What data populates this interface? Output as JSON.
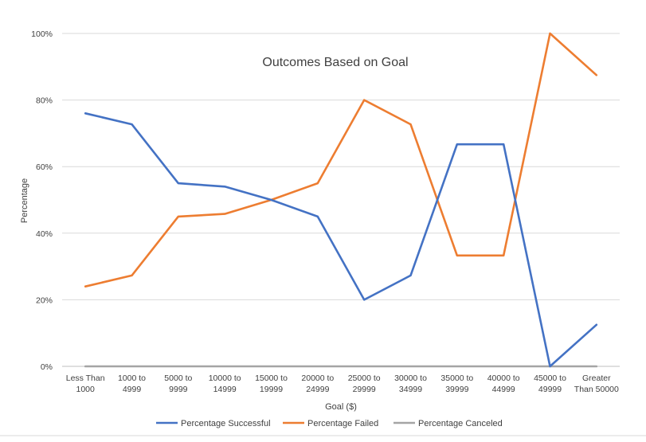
{
  "chart_data": {
    "type": "line",
    "title": "Outcomes Based on Goal",
    "xlabel": "Goal ($)",
    "ylabel": "Percentage",
    "ylim": [
      0,
      100
    ],
    "y_tick_values": [
      0,
      20,
      40,
      60,
      80,
      100
    ],
    "y_tick_labels": [
      "0%",
      "20%",
      "40%",
      "60%",
      "80%",
      "100%"
    ],
    "grid": true,
    "legend_position": "bottom",
    "categories": [
      [
        "Less Than",
        "1000"
      ],
      [
        "1000 to",
        "4999"
      ],
      [
        "5000 to",
        "9999"
      ],
      [
        "10000 to",
        "14999"
      ],
      [
        "15000 to",
        "19999"
      ],
      [
        "20000 to",
        "24999"
      ],
      [
        "25000 to",
        "29999"
      ],
      [
        "30000 to",
        "34999"
      ],
      [
        "35000 to",
        "39999"
      ],
      [
        "40000 to",
        "44999"
      ],
      [
        "45000 to",
        "49999"
      ],
      [
        "Greater",
        "Than 50000"
      ]
    ],
    "series": [
      {
        "name": "Percentage Successful",
        "color": "#4472C4",
        "values": [
          76,
          72.7,
          55,
          54,
          50,
          45,
          20,
          27.3,
          66.7,
          66.7,
          0,
          12.5
        ]
      },
      {
        "name": "Percentage Failed",
        "color": "#ED7D31",
        "values": [
          24,
          27.3,
          45,
          45.8,
          50,
          55,
          80,
          72.7,
          33.3,
          33.3,
          100,
          87.5
        ]
      },
      {
        "name": "Percentage Canceled",
        "color": "#A5A5A5",
        "values": [
          0,
          0,
          0,
          0,
          0,
          0,
          0,
          0,
          0,
          0,
          0,
          0
        ]
      }
    ]
  }
}
